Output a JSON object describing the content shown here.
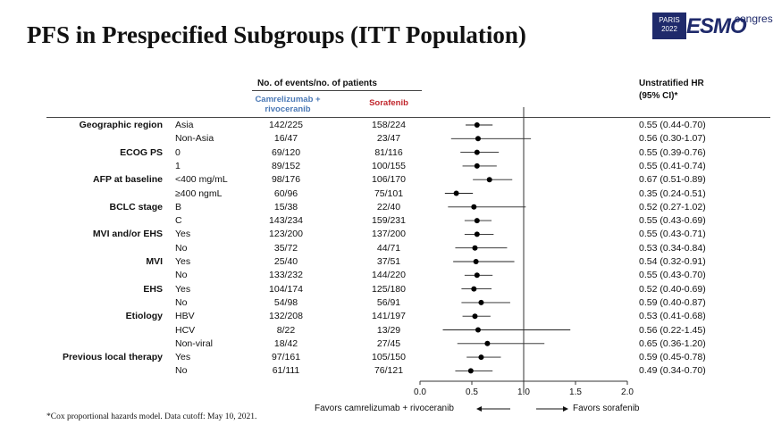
{
  "title": "PFS in Prespecified Subgroups (ITT Population)",
  "logo": {
    "line1": "PARIS",
    "line2": "2022",
    "brand": "ESMO",
    "suffix": "congress",
    "color": "#1f2a6b"
  },
  "header": {
    "events_label": "No. of events/no. of patients",
    "arm1": "Camrelizumab + rivoceranib",
    "arm1_color": "#4a78b5",
    "arm2": "Sorafenib",
    "arm2_color": "#c1272d",
    "hr_label": "Unstratified HR",
    "hr_ci": "(95% CI)*"
  },
  "footnote": "*Cox proportional hazards model. Data cutoff: May 10, 2021.",
  "favors_left": "Favors camrelizumab + rivoceranib",
  "favors_right": "Favors sorafenib",
  "chart_data": {
    "type": "forest",
    "x_ticks": [
      "0.0",
      "0.5",
      "1.0",
      "1.5",
      "2.0"
    ],
    "xlim": [
      0,
      2
    ],
    "reference_line": 1.0,
    "rows": [
      {
        "group": "Geographic region",
        "subgroup": "Asia",
        "events_arm1": "142/225",
        "events_arm2": "158/224",
        "hr": 0.55,
        "lo": 0.44,
        "hi": 0.7,
        "hr_text": "0.55 (0.44-0.70)"
      },
      {
        "group": "",
        "subgroup": "Non-Asia",
        "events_arm1": "16/47",
        "events_arm2": "23/47",
        "hr": 0.56,
        "lo": 0.3,
        "hi": 1.07,
        "hr_text": "0.56 (0.30-1.07)"
      },
      {
        "group": "ECOG PS",
        "subgroup": "0",
        "events_arm1": "69/120",
        "events_arm2": "81/116",
        "hr": 0.55,
        "lo": 0.39,
        "hi": 0.76,
        "hr_text": "0.55 (0.39-0.76)"
      },
      {
        "group": "",
        "subgroup": "1",
        "events_arm1": "89/152",
        "events_arm2": "100/155",
        "hr": 0.55,
        "lo": 0.41,
        "hi": 0.74,
        "hr_text": "0.55 (0.41-0.74)"
      },
      {
        "group": "AFP at baseline",
        "subgroup": "<400 mg/mL",
        "events_arm1": "98/176",
        "events_arm2": "106/170",
        "hr": 0.67,
        "lo": 0.51,
        "hi": 0.89,
        "hr_text": "0.67 (0.51-0.89)"
      },
      {
        "group": "",
        "subgroup": "≥400 ngmL",
        "events_arm1": "60/96",
        "events_arm2": "75/101",
        "hr": 0.35,
        "lo": 0.24,
        "hi": 0.51,
        "hr_text": "0.35 (0.24-0.51)"
      },
      {
        "group": "BCLC stage",
        "subgroup": "B",
        "events_arm1": "15/38",
        "events_arm2": "22/40",
        "hr": 0.52,
        "lo": 0.27,
        "hi": 1.02,
        "hr_text": "0.52 (0.27-1.02)"
      },
      {
        "group": "",
        "subgroup": "C",
        "events_arm1": "143/234",
        "events_arm2": "159/231",
        "hr": 0.55,
        "lo": 0.43,
        "hi": 0.69,
        "hr_text": "0.55 (0.43-0.69)"
      },
      {
        "group": "MVI and/or EHS",
        "subgroup": "Yes",
        "events_arm1": "123/200",
        "events_arm2": "137/200",
        "hr": 0.55,
        "lo": 0.43,
        "hi": 0.71,
        "hr_text": "0.55 (0.43-0.71)"
      },
      {
        "group": "",
        "subgroup": "No",
        "events_arm1": "35/72",
        "events_arm2": "44/71",
        "hr": 0.53,
        "lo": 0.34,
        "hi": 0.84,
        "hr_text": "0.53 (0.34-0.84)"
      },
      {
        "group": "MVI",
        "subgroup": "Yes",
        "events_arm1": "25/40",
        "events_arm2": "37/51",
        "hr": 0.54,
        "lo": 0.32,
        "hi": 0.91,
        "hr_text": "0.54 (0.32-0.91)"
      },
      {
        "group": "",
        "subgroup": "No",
        "events_arm1": "133/232",
        "events_arm2": "144/220",
        "hr": 0.55,
        "lo": 0.43,
        "hi": 0.7,
        "hr_text": "0.55 (0.43-0.70)"
      },
      {
        "group": "EHS",
        "subgroup": "Yes",
        "events_arm1": "104/174",
        "events_arm2": "125/180",
        "hr": 0.52,
        "lo": 0.4,
        "hi": 0.69,
        "hr_text": "0.52 (0.40-0.69)"
      },
      {
        "group": "",
        "subgroup": "No",
        "events_arm1": "54/98",
        "events_arm2": "56/91",
        "hr": 0.59,
        "lo": 0.4,
        "hi": 0.87,
        "hr_text": "0.59 (0.40-0.87)"
      },
      {
        "group": "Etiology",
        "subgroup": "HBV",
        "events_arm1": "132/208",
        "events_arm2": "141/197",
        "hr": 0.53,
        "lo": 0.41,
        "hi": 0.68,
        "hr_text": "0.53 (0.41-0.68)"
      },
      {
        "group": "",
        "subgroup": "HCV",
        "events_arm1": "8/22",
        "events_arm2": "13/29",
        "hr": 0.56,
        "lo": 0.22,
        "hi": 1.45,
        "hr_text": "0.56 (0.22-1.45)"
      },
      {
        "group": "",
        "subgroup": "Non-viral",
        "events_arm1": "18/42",
        "events_arm2": "27/45",
        "hr": 0.65,
        "lo": 0.36,
        "hi": 1.2,
        "hr_text": "0.65 (0.36-1.20)"
      },
      {
        "group": "Previous local therapy",
        "subgroup": "Yes",
        "events_arm1": "97/161",
        "events_arm2": "105/150",
        "hr": 0.59,
        "lo": 0.45,
        "hi": 0.78,
        "hr_text": "0.59 (0.45-0.78)"
      },
      {
        "group": "",
        "subgroup": "No",
        "events_arm1": "61/111",
        "events_arm2": "76/121",
        "hr": 0.49,
        "lo": 0.34,
        "hi": 0.7,
        "hr_text": "0.49 (0.34-0.70)"
      }
    ]
  }
}
